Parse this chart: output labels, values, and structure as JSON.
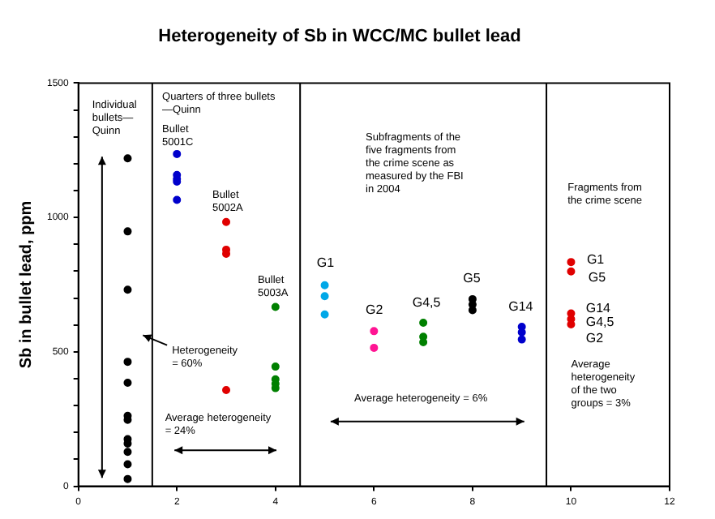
{
  "chart_data": {
    "type": "scatter",
    "title": "Heterogeneity of Sb in WCC/MC bullet lead",
    "ylabel": "Sb in bullet lead, ppm",
    "xlim": [
      0,
      12
    ],
    "xticks": [
      0,
      2,
      4,
      6,
      8,
      10,
      12
    ],
    "ylim": [
      0,
      1500
    ],
    "yticks": [
      0,
      {
        "value": 100,
        "label": null
      },
      {
        "value": 200,
        "label": null
      },
      {
        "value": 300,
        "label": null
      },
      {
        "value": 400,
        "label": null
      },
      500,
      {
        "value": 600,
        "label": null
      },
      {
        "value": 700,
        "label": null
      },
      {
        "value": 800,
        "label": null
      },
      {
        "value": 900,
        "label": null
      },
      1000,
      {
        "value": 1100,
        "label": null
      },
      {
        "value": 1200,
        "label": null
      },
      {
        "value": 1300,
        "label": null
      },
      {
        "value": 1400,
        "label": null
      },
      1500
    ],
    "grid": false,
    "legend": false,
    "marker": "circle",
    "series": [
      {
        "color": "#000000",
        "x": [
          1,
          1,
          1,
          1,
          1,
          1,
          1,
          1,
          1,
          1,
          1,
          1
        ],
        "values": [
          1220,
          948,
          731,
          463,
          385,
          262,
          247,
          175,
          159,
          128,
          82,
          27
        ]
      },
      {
        "color": "#0000cc",
        "x": [
          2,
          2,
          2,
          2,
          2
        ],
        "values": [
          1236,
          1158,
          1143,
          1133,
          1065
        ]
      },
      {
        "color": "#e00000",
        "x": [
          3,
          3,
          3,
          3
        ],
        "values": [
          983,
          880,
          865,
          358
        ]
      },
      {
        "color": "#008000",
        "x": [
          4,
          4,
          4,
          4,
          4
        ],
        "values": [
          667,
          445,
          398,
          381,
          365
        ]
      },
      {
        "color": "#00a8e8",
        "x": [
          5,
          5,
          5
        ],
        "values": [
          748,
          707,
          639
        ]
      },
      {
        "color": "#ff1493",
        "x": [
          6,
          6
        ],
        "values": [
          577,
          515
        ]
      },
      {
        "color": "#008000",
        "x": [
          7,
          7,
          7
        ],
        "values": [
          608,
          556,
          536
        ]
      },
      {
        "color": "#000000",
        "x": [
          8,
          8,
          8
        ],
        "values": [
          696,
          676,
          655
        ]
      },
      {
        "color": "#0000cc",
        "x": [
          9,
          9,
          9
        ],
        "values": [
          593,
          573,
          546
        ]
      },
      {
        "color": "#e00000",
        "x": [
          10,
          10,
          10,
          10,
          10
        ],
        "values": [
          834,
          799,
          643,
          622,
          602
        ]
      }
    ],
    "ref_lines": [
      {
        "axis": "x",
        "value": 1.5,
        "color": "#000000"
      },
      {
        "axis": "x",
        "value": 4.5,
        "color": "#000000"
      },
      {
        "axis": "x",
        "value": 9.5,
        "color": "#000000"
      }
    ],
    "annotations": [
      "Individual\nbullets—\nQuinn",
      "Quarters of three bullets\n—Quinn",
      "Bullet\n5001C",
      "Bullet\n5002A",
      "Bullet\n5003A",
      "Heterogeneity\n= 60%",
      "Average heterogeneity\n= 24%",
      "Subfragments of the\nfive fragments from\nthe crime scene as\nmeasured by the FBI\nin 2004",
      "G1",
      "G2",
      "G4,5",
      "G5",
      "G14",
      "Average heterogeneity = 6%",
      "Fragments from\nthe crime scene",
      "G1",
      "G5",
      "G14",
      "G4,5",
      "G2",
      "Average\nheterogeneity\nof the two\ngroups = 3%"
    ]
  }
}
